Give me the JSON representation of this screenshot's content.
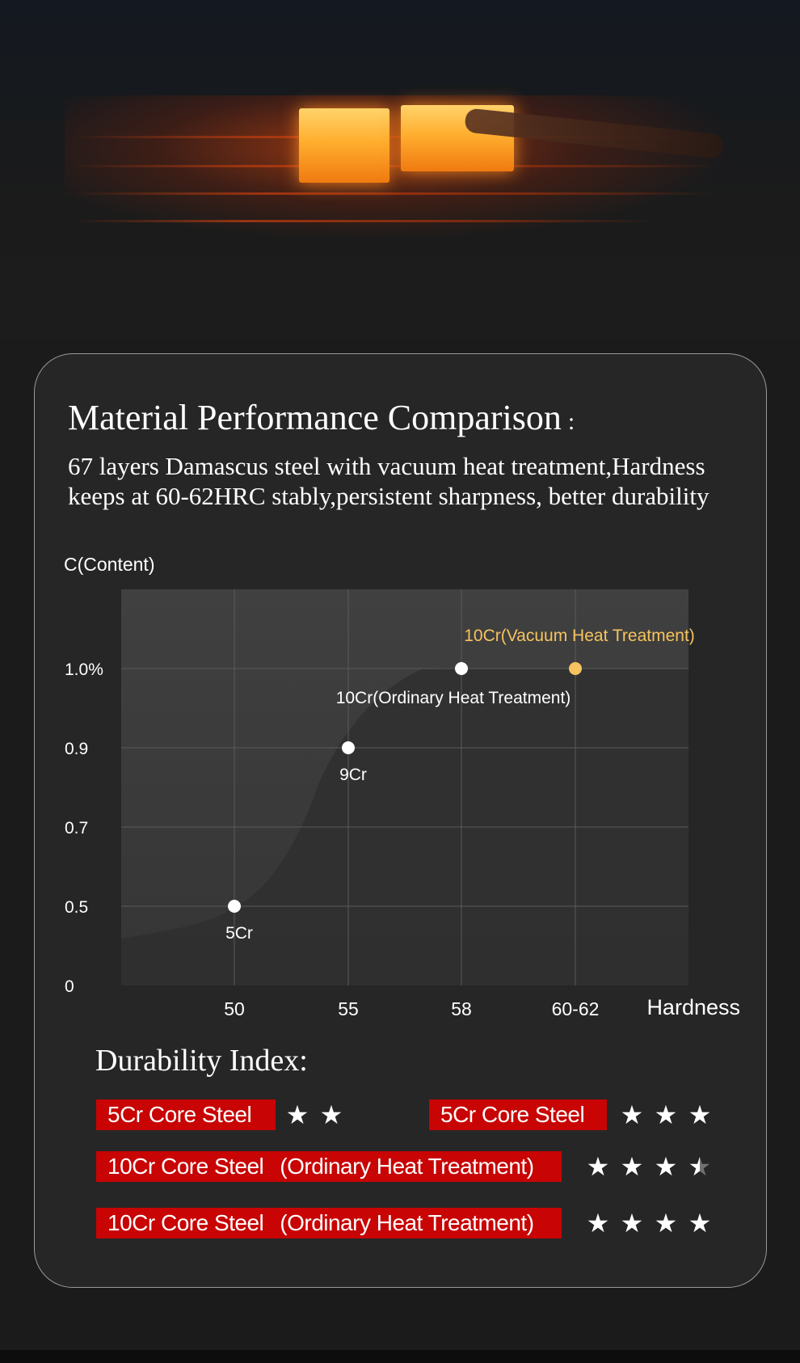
{
  "hero": {
    "alt_icon": "forge-fire-image"
  },
  "header": {
    "title": "Material Performance Comparison",
    "title_colon": ":",
    "subtitle_line1": "67 layers Damascus steel with vacuum heat treatment,Hardness",
    "subtitle_line2": "keeps at 60-62HRC stably,persistent sharpness, better durability"
  },
  "chart_data": {
    "type": "scatter",
    "title": "",
    "ylabel": "C(Content)",
    "xlabel": "Hardness",
    "x_categories": [
      "50",
      "55",
      "58",
      "60-62"
    ],
    "y_ticks": [
      "0",
      "0.5",
      "0.7",
      "0.9",
      "1.0%"
    ],
    "grid": true,
    "points": [
      {
        "x": "50",
        "y": "0.5",
        "label": "5Cr",
        "color": "#ffffff"
      },
      {
        "x": "55",
        "y": "0.9",
        "label": "9Cr",
        "color": "#ffffff"
      },
      {
        "x": "58",
        "y": "1.0%",
        "label": "10Cr(Ordinary Heat Treatment)",
        "color": "#ffffff"
      },
      {
        "x": "60-62",
        "y": "1.0%",
        "label": "10Cr(Vacuum Heat Treatment)",
        "color": "#f6c35e"
      }
    ]
  },
  "durability": {
    "title": "Durability Index:",
    "rows": [
      {
        "label": "5Cr Core Steel",
        "sub": "",
        "rating": 2
      },
      {
        "label": "5Cr Core Steel",
        "sub": "",
        "rating": 3
      },
      {
        "label": "10Cr Core Steel",
        "sub": "(Ordinary Heat Treatment)",
        "rating": 3.5
      },
      {
        "label": "10Cr Core Steel",
        "sub": "(Ordinary Heat Treatment)",
        "rating": 4
      }
    ]
  },
  "colors": {
    "accent_red": "#c80404",
    "highlight_gold": "#f6c35e",
    "card_bg": "#262626",
    "plot_bg": "#3a3a3a"
  }
}
